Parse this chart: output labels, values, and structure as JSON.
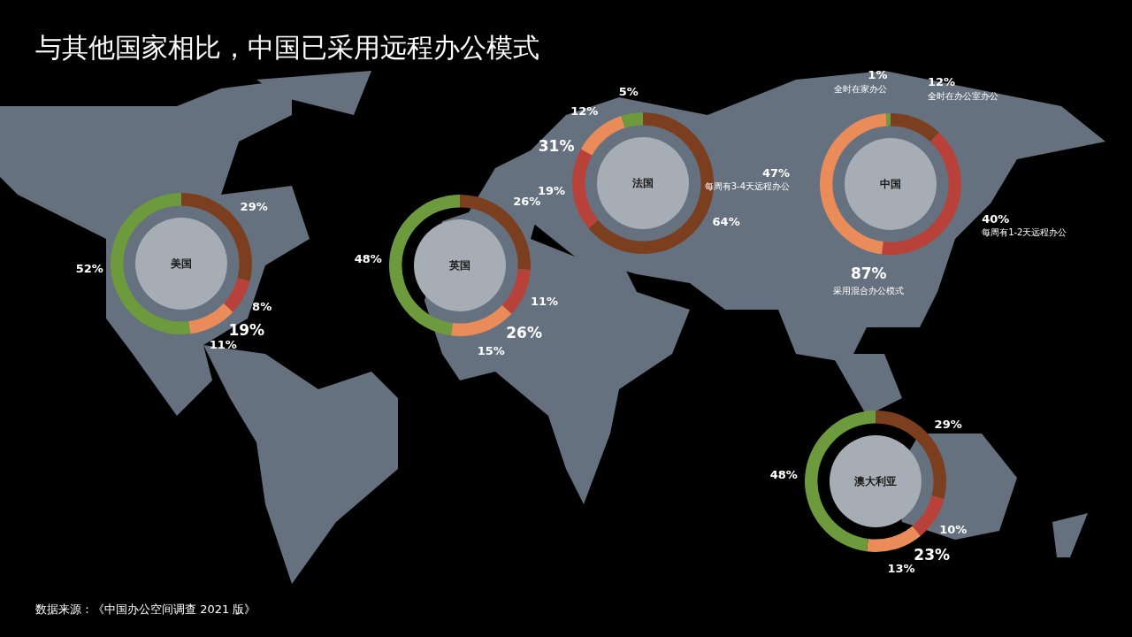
{
  "chart_data": [
    {
      "type": "other",
      "title": "与其他国家相比，中国已采用远程办公模式",
      "annotations": [
        "数据来源：《中国办公空间调查 2021 版》"
      ]
    },
    {
      "type": "donut",
      "title": "美国",
      "categories": [
        null,
        null,
        null,
        null
      ],
      "values": [
        29,
        8,
        11,
        52
      ],
      "value_labels": [
        "29%",
        "8%",
        "11%",
        "52%"
      ],
      "colors": [
        "#7b3f1f",
        "#b8423a",
        "#e98c5a",
        "#6c9a3c"
      ],
      "annotations": [
        "19%"
      ]
    },
    {
      "type": "donut",
      "title": "英国",
      "categories": [
        null,
        null,
        null,
        null
      ],
      "values": [
        26,
        11,
        15,
        48
      ],
      "value_labels": [
        "26%",
        "11%",
        "15%",
        "48%"
      ],
      "colors": [
        "#7b3f1f",
        "#b8423a",
        "#e98c5a",
        "#6c9a3c"
      ],
      "annotations": [
        "26%"
      ]
    },
    {
      "type": "donut",
      "title": "法国",
      "categories": [
        null,
        null,
        null,
        null
      ],
      "values": [
        64,
        19,
        12,
        5
      ],
      "value_labels": [
        "64%",
        "19%",
        "12%",
        "5%"
      ],
      "colors": [
        "#7b3f1f",
        "#b8423a",
        "#e98c5a",
        "#6c9a3c"
      ],
      "annotations": [
        "31%"
      ]
    },
    {
      "type": "donut",
      "title": "中国",
      "categories": [
        "全时在办公室办公",
        "每周有1-2天远程办公",
        "每周有3-4天远程办公",
        "全时在家办公"
      ],
      "values": [
        12,
        40,
        47,
        1
      ],
      "value_labels": [
        "12%",
        "40%",
        "47%",
        "1%"
      ],
      "colors": [
        "#7b3f1f",
        "#b8423a",
        "#e98c5a",
        "#6c9a3c"
      ],
      "annotations": [
        "87%",
        "采用混合办公模式"
      ]
    },
    {
      "type": "donut",
      "title": "澳大利亚",
      "categories": [
        null,
        null,
        null,
        null
      ],
      "values": [
        29,
        10,
        13,
        48
      ],
      "value_labels": [
        "29%",
        "10%",
        "13%",
        "48%"
      ],
      "colors": [
        "#7b3f1f",
        "#b8423a",
        "#e98c5a",
        "#6c9a3c"
      ],
      "annotations": [
        "23%"
      ]
    }
  ]
}
